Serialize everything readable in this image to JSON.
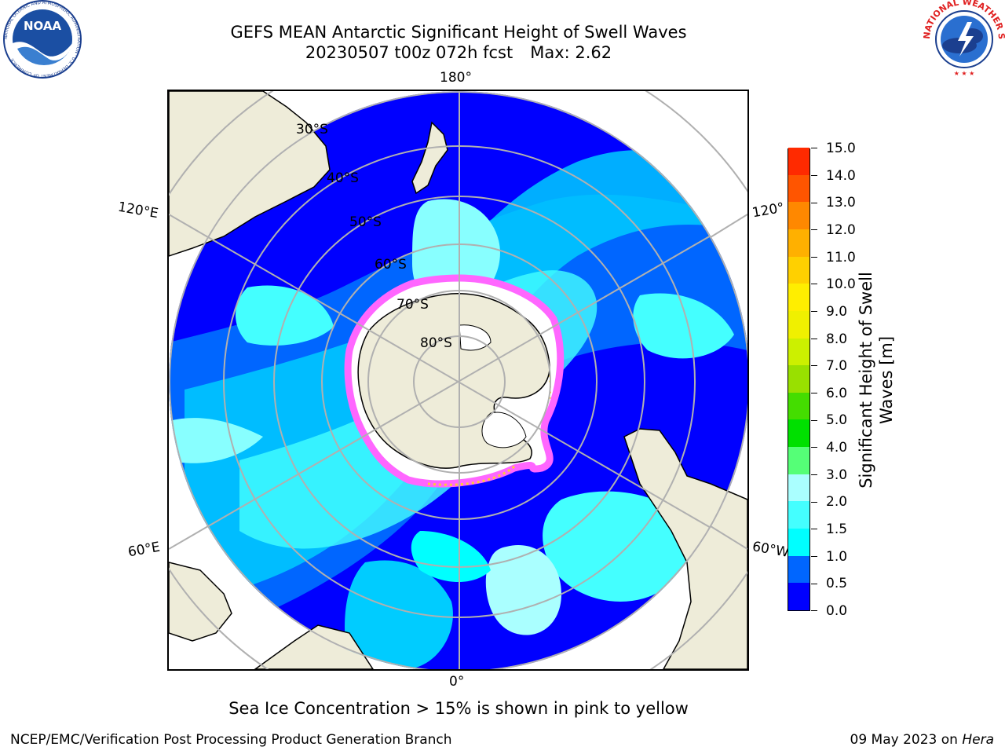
{
  "title": {
    "line1": "GEFS MEAN Antarctic Significant Height of Swell Waves",
    "line2_run": "20230507 t00z 072h fcst",
    "line2_max": "Max: 2.62"
  },
  "map": {
    "projection": "south-polar-stereographic",
    "longitude_labels": {
      "top": "180°",
      "bottom": "0°",
      "left_upper": "120°E",
      "left_lower": "60°E",
      "right_upper": "120°",
      "right_lower": "60°W"
    },
    "latitude_labels": [
      "30°S",
      "40°S",
      "50°S",
      "60°S",
      "70°S",
      "80°S"
    ],
    "colors": {
      "land": "#eeecd9",
      "sea_ice_low": "#ff66ff",
      "sea_ice_high": "#ffcc33",
      "graticule": "#b0b0b0"
    }
  },
  "colorbar": {
    "label": "Significant Height of Swell Waves [m]",
    "label_line1": "Significant Height of Swell",
    "label_line2": "Waves [m]",
    "ticks": [
      "0.0",
      "0.5",
      "1.0",
      "1.5",
      "2.0",
      "3.0",
      "4.0",
      "5.0",
      "6.0",
      "7.0",
      "8.0",
      "9.0",
      "10.0",
      "11.0",
      "12.0",
      "13.0",
      "14.0",
      "15.0"
    ],
    "colors": [
      "#0000ff",
      "#0066ff",
      "#00ffff",
      "#44ffff",
      "#aaffff",
      "#55ff77",
      "#00e000",
      "#44dd00",
      "#99e000",
      "#ccf000",
      "#f0f000",
      "#ffee00",
      "#ffd000",
      "#ffb000",
      "#ff8800",
      "#ff5500",
      "#ff2a00",
      "#ff0000"
    ]
  },
  "note": "Sea Ice Concentration > 15% is shown in pink to yellow",
  "footer": {
    "left": "NCEP/EMC/Verification Post Processing Product Generation Branch",
    "right_date": "09 May 2023 on",
    "right_host": "Hera"
  },
  "logos": {
    "left": "NOAA",
    "left_ring": "NATIONAL OCEANIC AND ATMOSPHERIC ADMINISTRATION · U.S. DEPARTMENT OF COMMERCE",
    "right_ring": "NATIONAL WEATHER SERVICE"
  }
}
